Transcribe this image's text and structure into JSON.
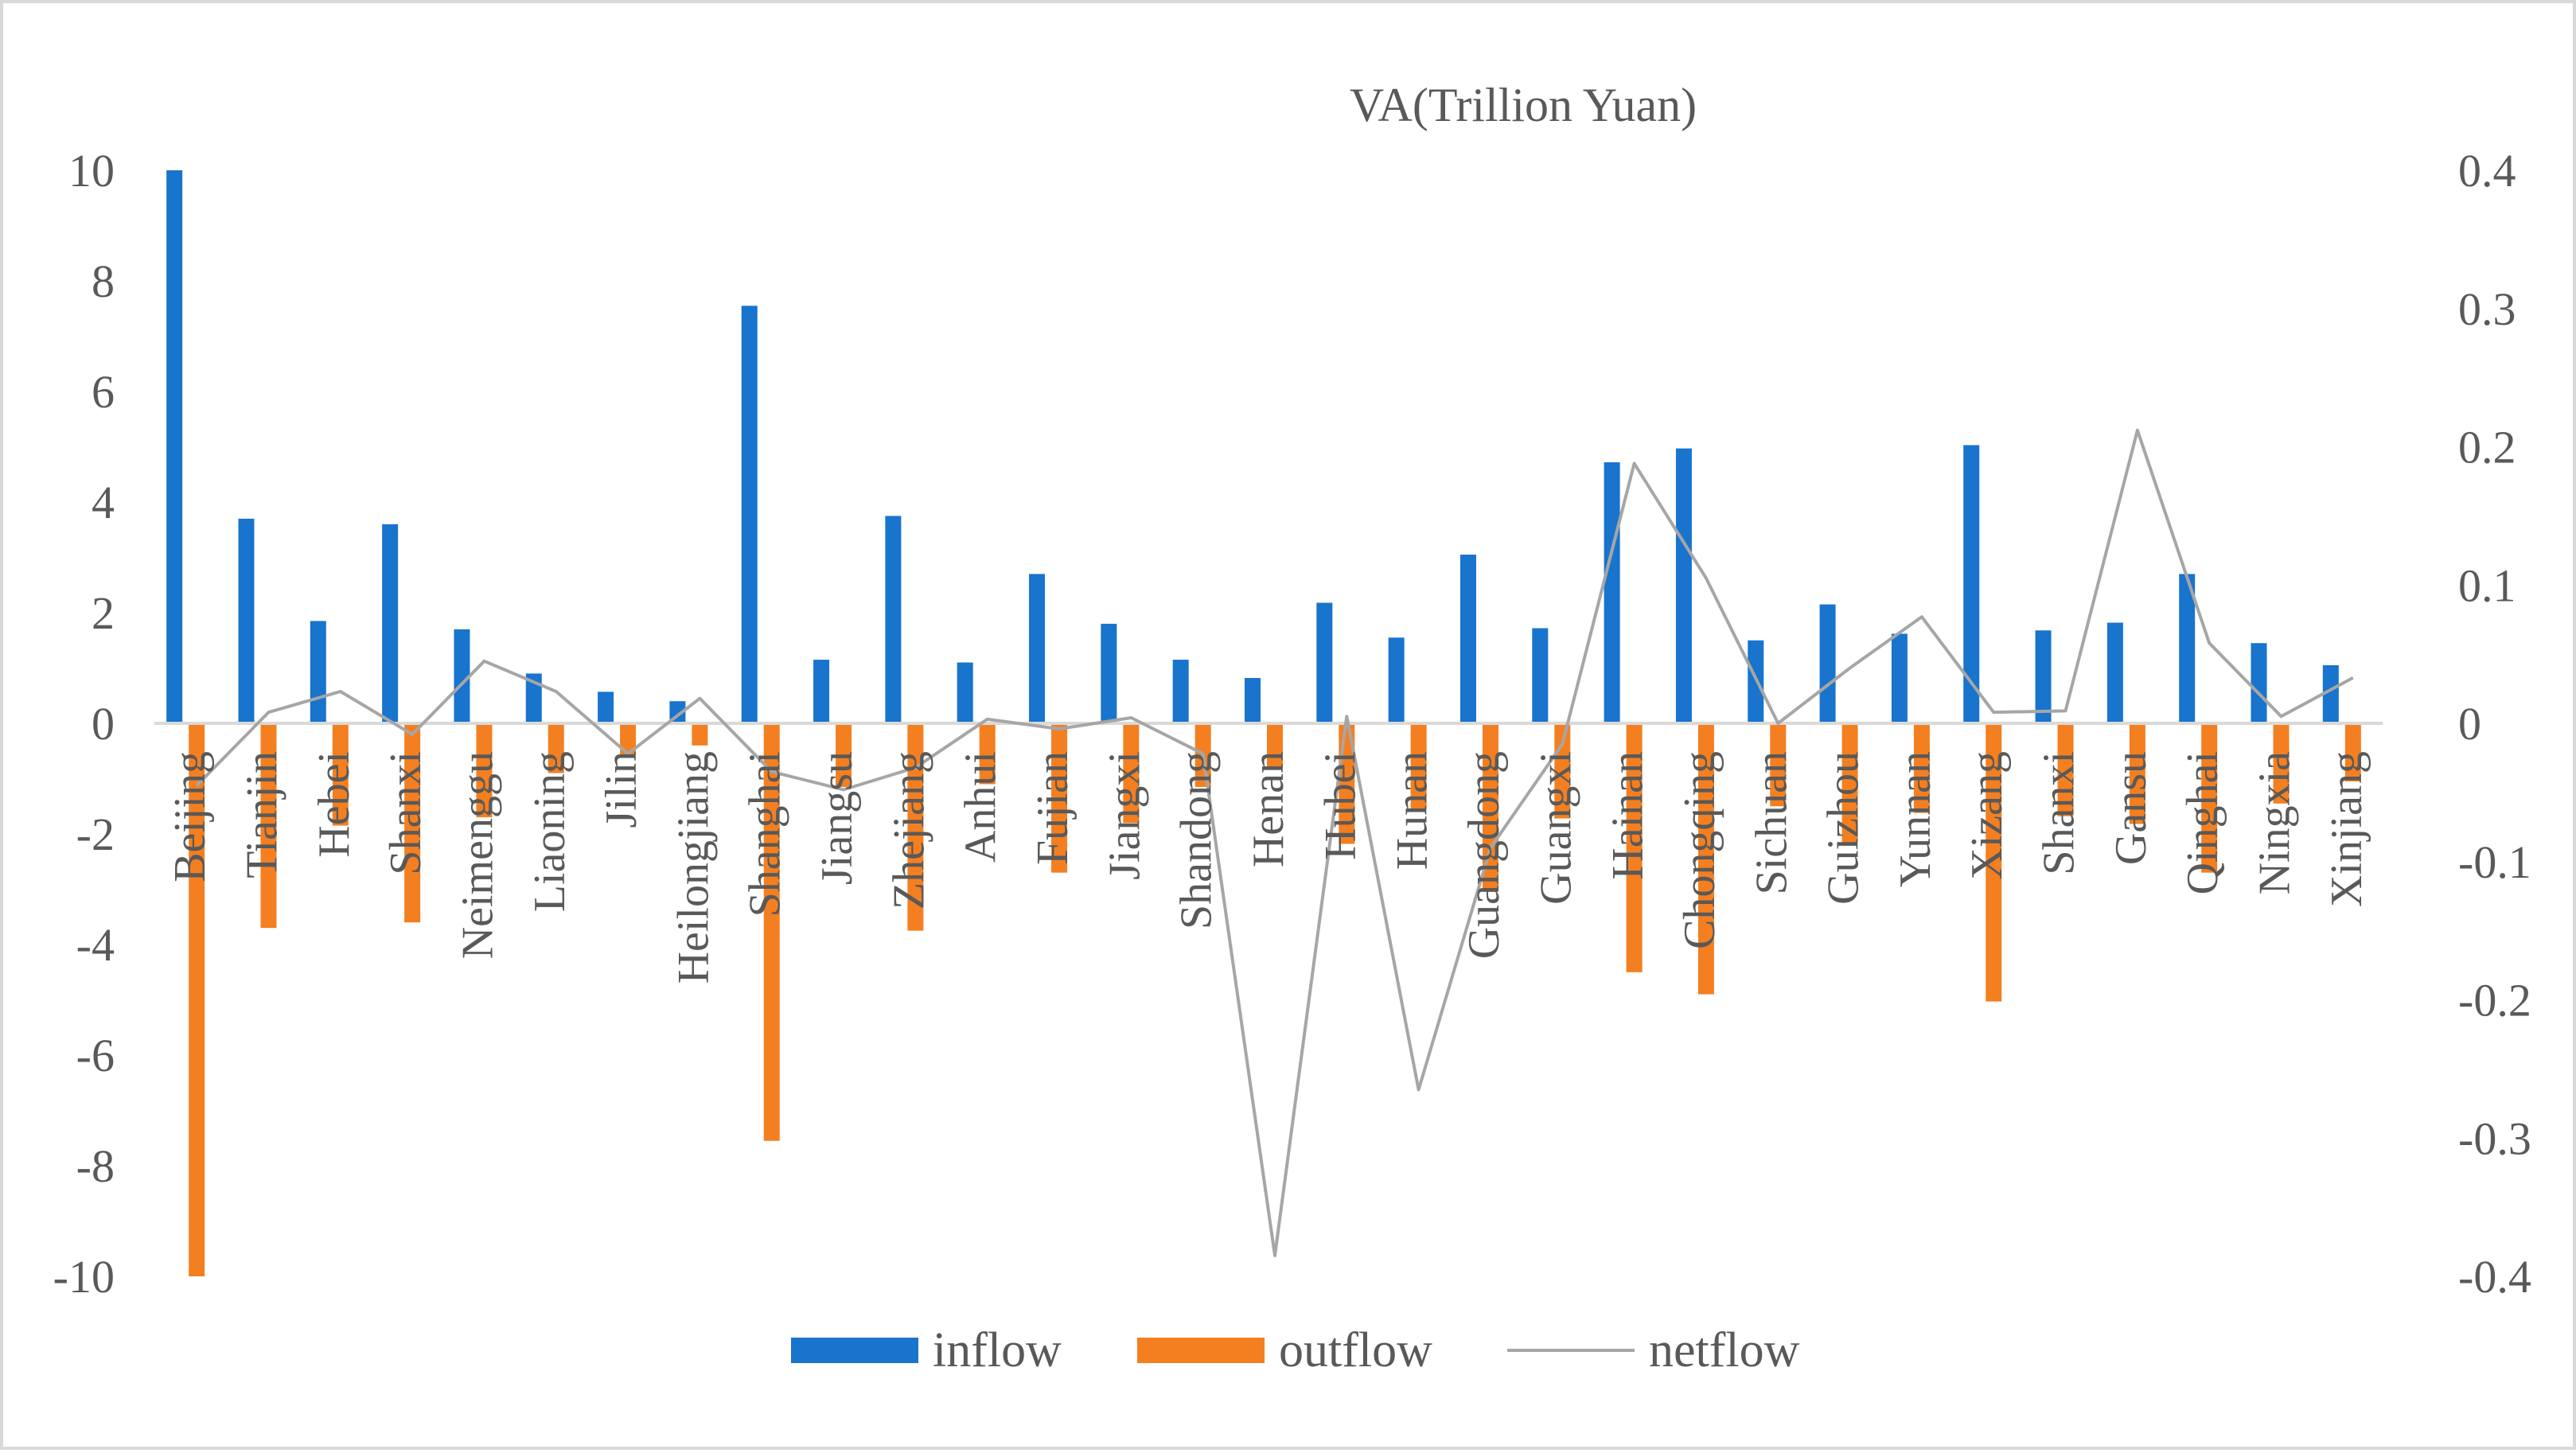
{
  "chart_data": {
    "type": "bar",
    "title": "VA(Trillion Yuan)",
    "categories": [
      "Beijing",
      "Tianjin",
      "Hebei",
      "Shanxi",
      "Neimenggu",
      "Liaoning",
      "Jilin",
      "Heilongjiang",
      "Shanghai",
      "Jiangsu",
      "Zhejiang",
      "Anhui",
      "Fujian",
      "Jiangxi",
      "Shandong",
      "Henan",
      "Hubei",
      "Hunan",
      "Guangdong",
      "Guangxi",
      "Hainan",
      "Chongqing",
      "Sichuan",
      "Guizhou",
      "Yunnan",
      "Xizang",
      "Shanxi",
      "Gansu",
      "Qinghai",
      "Ningxia",
      "Xinjiang"
    ],
    "y_left": {
      "ticks": [
        "10",
        "8",
        "6",
        "4",
        "2",
        "0",
        "-2",
        "-4",
        "-6",
        "-8",
        "-10"
      ],
      "ylim": [
        -10,
        10
      ]
    },
    "y_right": {
      "ticks": [
        "0.4",
        "0.3",
        "0.2",
        "0.1",
        "0",
        "-0.1",
        "-0.2",
        "-0.3",
        "-0.4"
      ],
      "ylim": [
        -0.4,
        0.4
      ]
    },
    "grid": false,
    "legend_position": "bottom",
    "series": [
      {
        "name": "inflow",
        "type": "bar",
        "axis": "left",
        "color": "#1874cd",
        "values": [
          10.0,
          3.7,
          1.85,
          3.6,
          1.7,
          0.9,
          0.57,
          0.4,
          7.55,
          1.15,
          3.75,
          1.1,
          2.7,
          1.8,
          1.15,
          0.82,
          2.18,
          1.55,
          3.05,
          1.72,
          4.72,
          4.97,
          1.5,
          2.15,
          1.62,
          5.03,
          1.68,
          1.82,
          2.7,
          1.45,
          1.05
        ]
      },
      {
        "name": "outflow",
        "type": "bar",
        "axis": "left",
        "color": "#f47f20",
        "values": [
          -10.0,
          -3.7,
          -1.85,
          -3.6,
          -1.7,
          -0.9,
          -0.57,
          -0.4,
          -7.55,
          -1.15,
          -3.75,
          -1.1,
          -2.7,
          -1.8,
          -1.15,
          -0.82,
          -2.18,
          -1.55,
          -3.05,
          -1.72,
          -4.5,
          -4.9,
          -1.5,
          -2.15,
          -1.62,
          -5.03,
          -1.68,
          -1.82,
          -2.7,
          -1.45,
          -1.05
        ]
      },
      {
        "name": "netflow",
        "type": "line",
        "axis": "right",
        "color": "#a6a6a6",
        "values": [
          -0.045,
          0.008,
          0.023,
          -0.008,
          0.045,
          0.023,
          -0.022,
          0.018,
          -0.035,
          -0.048,
          -0.032,
          0.003,
          -0.004,
          0.004,
          -0.022,
          -0.385,
          0.005,
          -0.265,
          -0.09,
          -0.015,
          0.188,
          0.105,
          0.0,
          0.04,
          0.077,
          0.008,
          0.009,
          0.212,
          0.058,
          0.005,
          0.033
        ]
      }
    ]
  }
}
